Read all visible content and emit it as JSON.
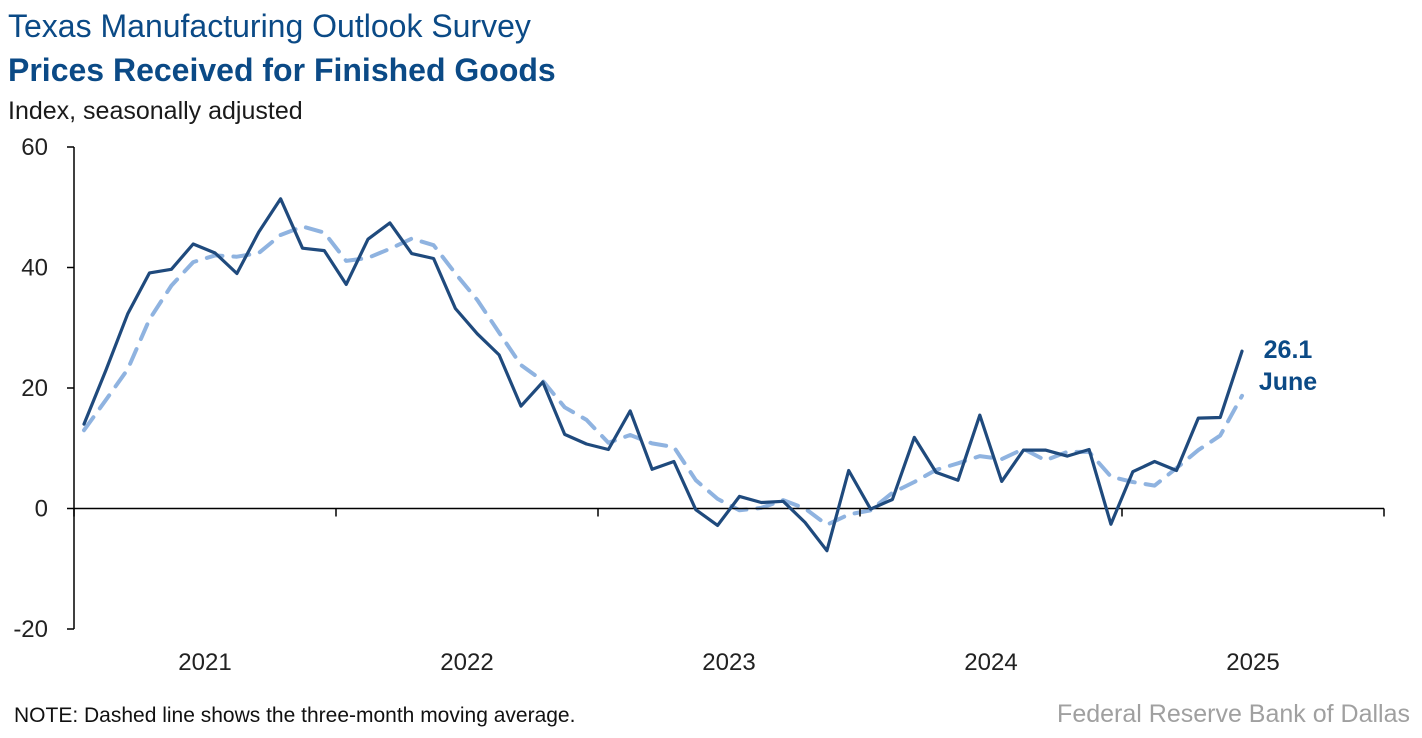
{
  "header": {
    "title": "Texas Manufacturing Outlook Survey",
    "subtitle": "Prices Received for Finished Goods",
    "units": "Index, seasonally adjusted"
  },
  "footer": {
    "note": "NOTE: Dashed line shows the three-month moving average.",
    "source": "Federal Reserve Bank of Dallas"
  },
  "callout": {
    "value": "26.1",
    "month": "June"
  },
  "colors": {
    "series": "#1f4a7d",
    "moving_average": "#8fb3e0",
    "title": "#0b4a86"
  },
  "chart_data": {
    "type": "line",
    "ylim": [
      -20,
      60
    ],
    "yticks": [
      -20,
      0,
      20,
      40,
      60
    ],
    "x_start": "2020-07",
    "xticks": [
      "2021",
      "2022",
      "2023",
      "2024",
      "2025"
    ],
    "grid": false,
    "series": [
      {
        "style": "solid",
        "values": [
          14.0,
          22.9,
          32.3,
          39.1,
          39.7,
          43.9,
          42.4,
          39.0,
          45.9,
          51.4,
          43.2,
          42.8,
          37.2,
          44.7,
          47.4,
          42.3,
          41.5,
          33.2,
          29.0,
          25.5,
          17.0,
          21.0,
          12.3,
          10.7,
          9.8,
          16.2,
          6.5,
          7.8,
          -0.2,
          -2.8,
          2.0,
          1.0,
          1.2,
          -2.3,
          -7.0,
          6.3,
          -0.1,
          1.5,
          11.8,
          6.0,
          4.7,
          15.5,
          4.5,
          9.7,
          9.7,
          8.7,
          9.8,
          -2.6,
          6.1,
          7.8,
          6.3,
          15.0,
          15.1,
          26.1
        ]
      },
      {
        "style": "dashed",
        "values": [
          13.0,
          18.0,
          23.1,
          31.4,
          37.0,
          40.9,
          42.0,
          41.8,
          42.4,
          45.4,
          46.8,
          45.8,
          41.1,
          41.6,
          43.1,
          44.8,
          43.7,
          39.0,
          34.6,
          29.2,
          23.8,
          21.2,
          16.8,
          14.7,
          10.9,
          12.2,
          10.8,
          10.2,
          4.7,
          1.6,
          -0.3,
          0.1,
          1.4,
          0.0,
          -2.7,
          -1.0,
          -0.3,
          2.6,
          4.4,
          6.4,
          7.5,
          8.7,
          8.2,
          9.9,
          8.0,
          9.4,
          9.4,
          5.3,
          4.4,
          3.8,
          6.7,
          9.7,
          12.1,
          18.7
        ]
      }
    ]
  }
}
